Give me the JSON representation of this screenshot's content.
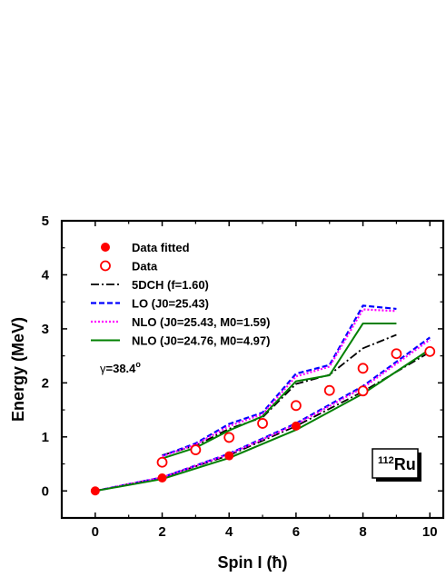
{
  "chart_data": {
    "type": "line",
    "xlabel": "Spin I (ħ)",
    "ylabel": "Energy (MeV)",
    "xlim": [
      -1,
      10.4
    ],
    "ylim": [
      -0.5,
      5
    ],
    "x_ticks": [
      0,
      2,
      4,
      6,
      8,
      10
    ],
    "y_ticks": [
      0,
      1,
      2,
      3,
      4,
      5
    ],
    "grid": false,
    "legend_position": "top-left",
    "nucleus": {
      "mass": "112",
      "element": "Ru"
    },
    "gamma_annotation": {
      "symbol": "γ",
      "value": "=38.4",
      "unit": "o"
    },
    "series": [
      {
        "name": "Data fitted",
        "style": "filled-circle",
        "color": "#ff0000",
        "x": [
          0,
          2,
          4,
          6
        ],
        "y": [
          0.0,
          0.24,
          0.65,
          1.2
        ]
      },
      {
        "name": "Data",
        "style": "open-circle",
        "color": "#ff0000",
        "x": [
          2,
          3,
          4,
          5,
          6,
          7,
          8,
          8,
          9,
          10
        ],
        "y": [
          0.53,
          0.76,
          0.99,
          1.25,
          1.58,
          1.86,
          2.27,
          1.85,
          2.54,
          2.58
        ]
      },
      {
        "name": "5DCH (f=1.60)",
        "style": "dash-dot",
        "color": "#000000",
        "segments": [
          {
            "x": [
              0,
              2,
              4,
              6,
              8,
              10
            ],
            "y": [
              0.0,
              0.25,
              0.66,
              1.2,
              1.84,
              2.57
            ]
          },
          {
            "x": [
              2,
              3,
              4,
              5,
              6,
              7,
              8,
              9
            ],
            "y": [
              0.66,
              0.84,
              1.15,
              1.36,
              1.98,
              2.15,
              2.64,
              2.89
            ]
          }
        ]
      },
      {
        "name": "LO (J0=25.43)",
        "style": "dashed",
        "color": "#0000ff",
        "segments": [
          {
            "x": [
              0,
              2,
              4,
              6,
              8,
              10
            ],
            "y": [
              0.0,
              0.25,
              0.69,
              1.25,
              1.94,
              2.84
            ]
          },
          {
            "x": [
              2,
              3,
              4,
              5,
              6,
              7,
              8,
              9
            ],
            "y": [
              0.65,
              0.88,
              1.24,
              1.45,
              2.17,
              2.33,
              3.43,
              3.37
            ]
          }
        ]
      },
      {
        "name": "NLO (J0=25.43, M0=1.59)",
        "style": "dotted",
        "color": "#ff00ff",
        "segments": [
          {
            "x": [
              0,
              2,
              4,
              6,
              8,
              10
            ],
            "y": [
              0.0,
              0.25,
              0.68,
              1.23,
              1.91,
              2.8
            ]
          },
          {
            "x": [
              2,
              3,
              4,
              5,
              6,
              7,
              8,
              9
            ],
            "y": [
              0.64,
              0.86,
              1.2,
              1.42,
              2.12,
              2.3,
              3.36,
              3.33
            ]
          }
        ]
      },
      {
        "name": "NLO (J0=24.76, M0=4.97)",
        "style": "solid",
        "color": "#008000",
        "segments": [
          {
            "x": [
              0,
              2,
              4,
              6,
              8,
              10
            ],
            "y": [
              0.0,
              0.22,
              0.61,
              1.13,
              1.8,
              2.62
            ]
          },
          {
            "x": [
              2,
              3,
              4,
              5,
              6,
              7,
              8,
              9
            ],
            "y": [
              0.6,
              0.8,
              1.12,
              1.38,
              2.03,
              2.14,
              3.1,
              3.1
            ]
          }
        ]
      }
    ]
  }
}
